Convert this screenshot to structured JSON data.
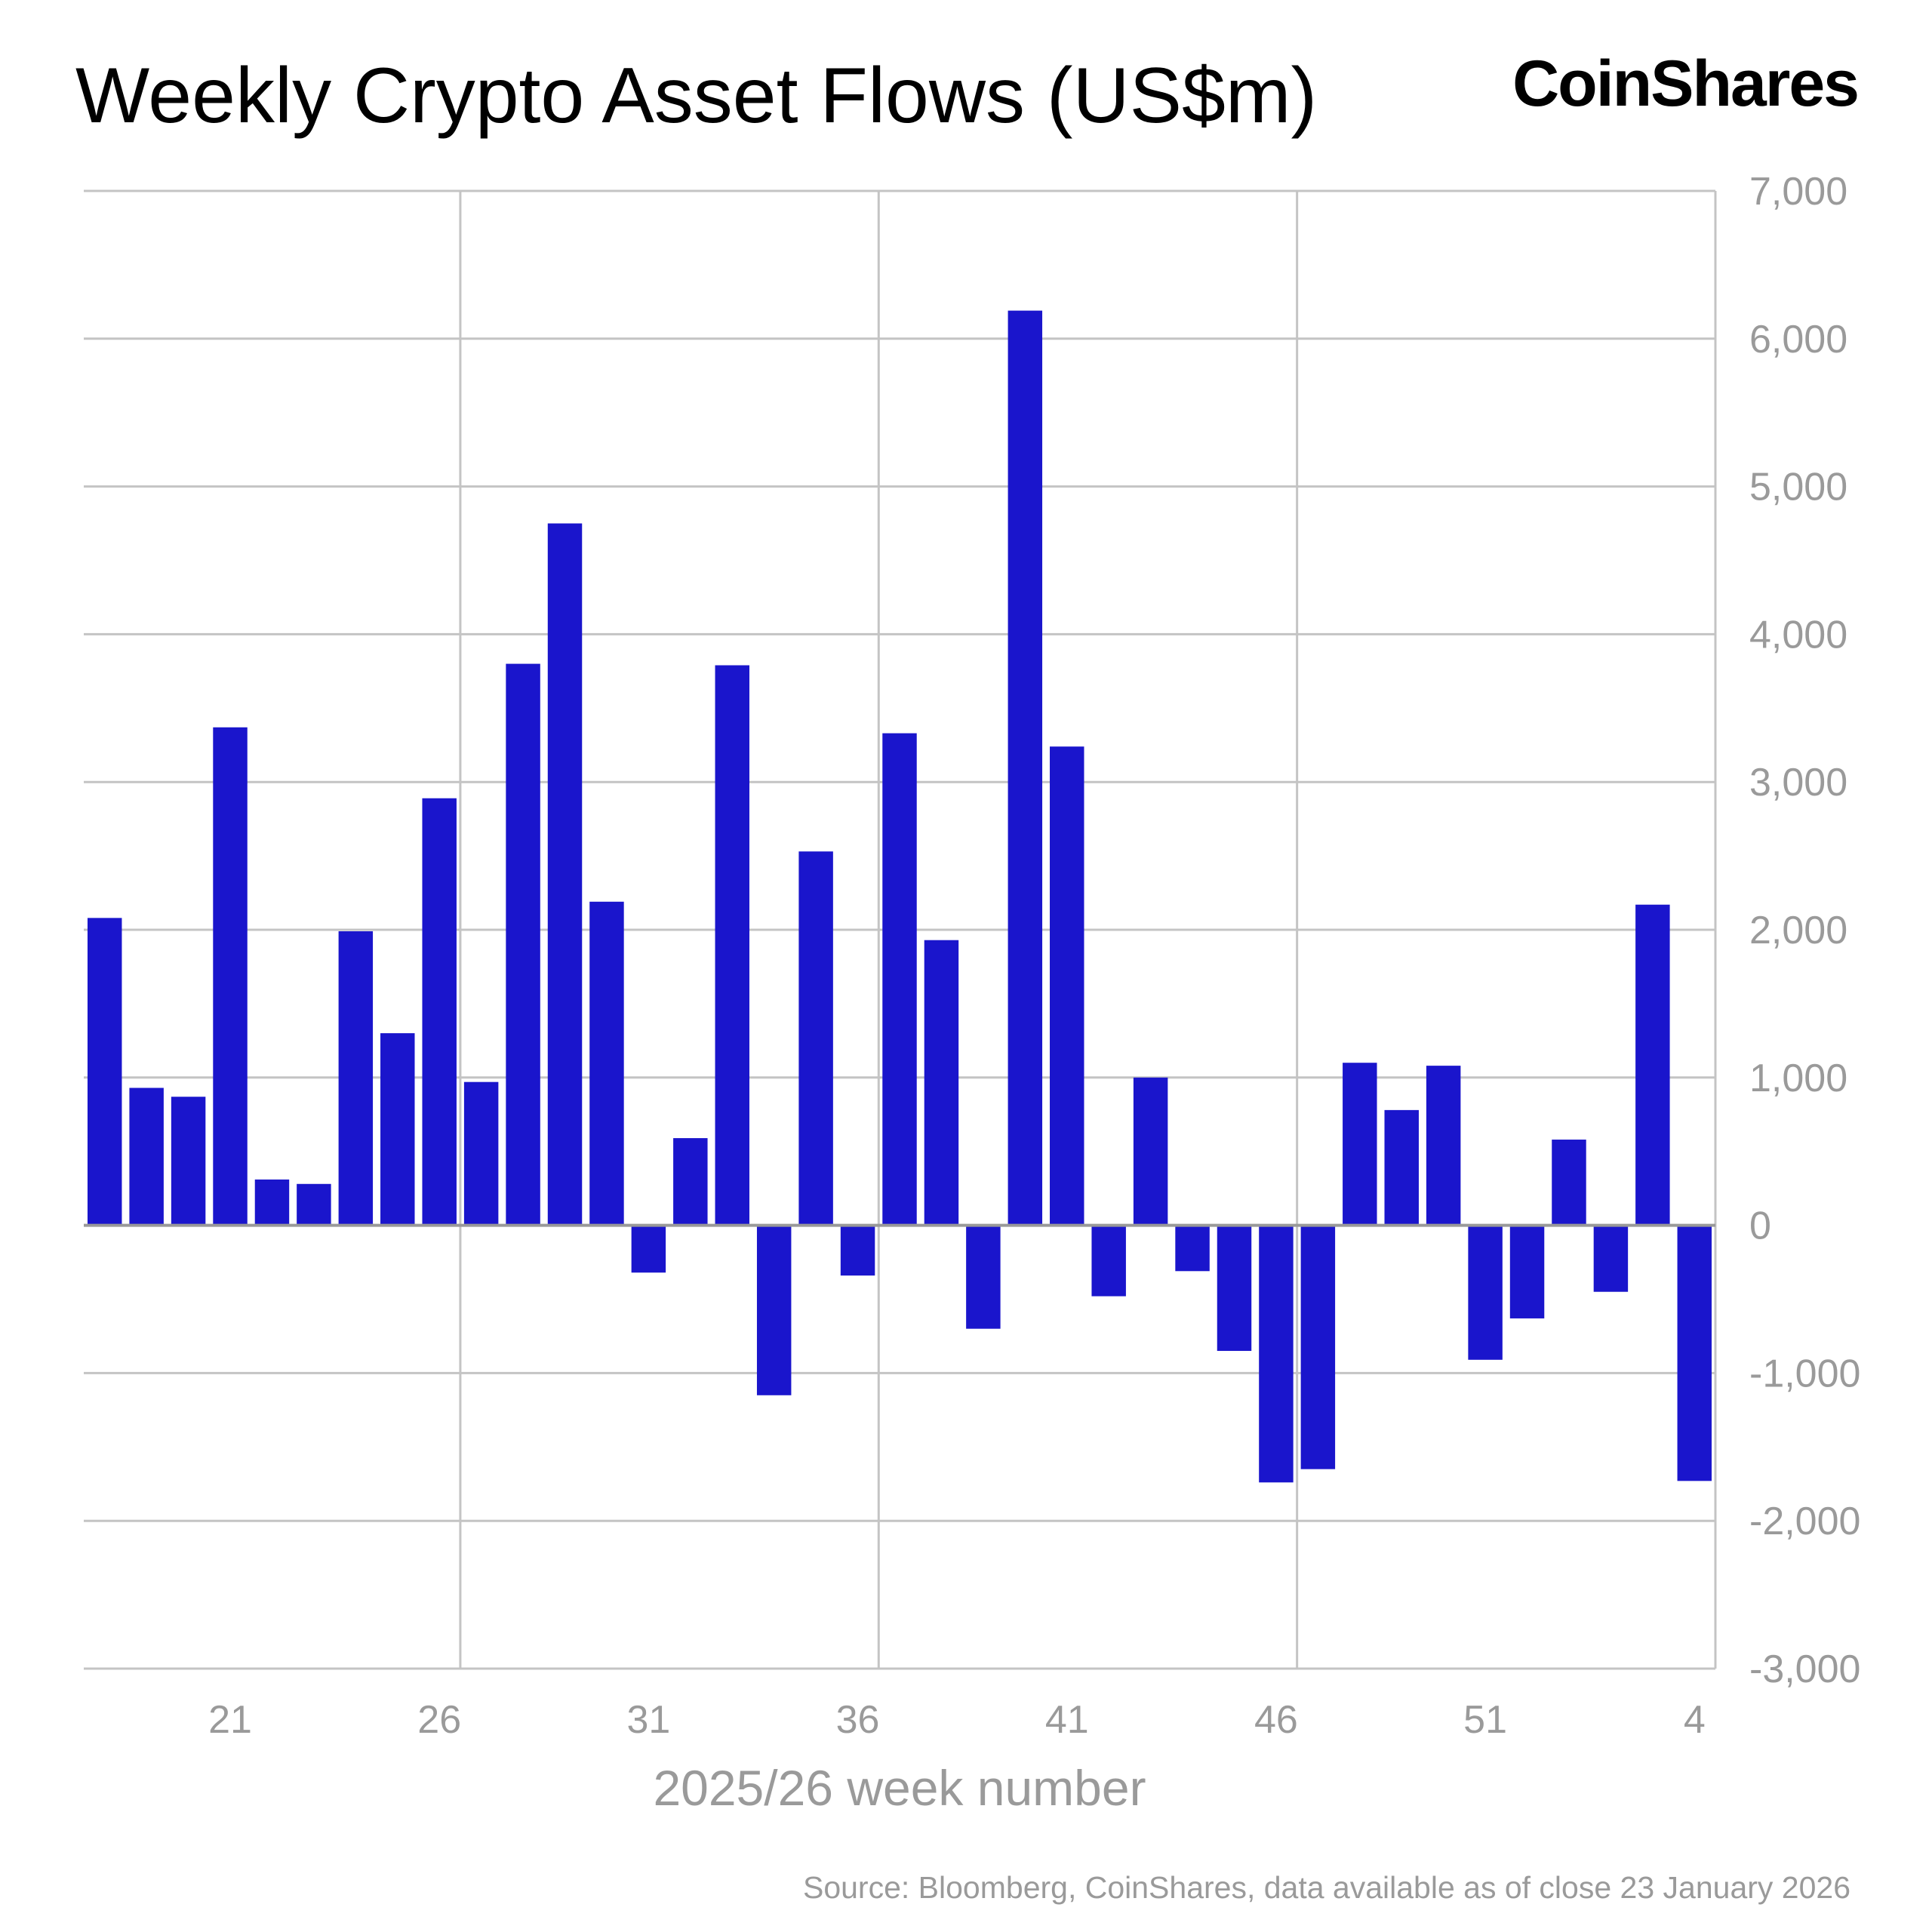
{
  "chart_data": {
    "type": "bar",
    "title": "Weekly Crypto Asset Flows (US$m)",
    "xlabel": "2025/26 week number",
    "ylabel": "",
    "ylim": [
      -3000,
      7000
    ],
    "yticks": [
      7000,
      6000,
      5000,
      4000,
      3000,
      2000,
      1000,
      0,
      -1000,
      -2000,
      -3000
    ],
    "ytick_labels": [
      "7,000",
      "6,000",
      "5,000",
      "4,000",
      "3,000",
      "2,000",
      "1,000",
      "0",
      "-1,000",
      "-2,000",
      "-3,000"
    ],
    "categories": [
      "18",
      "19",
      "20",
      "21",
      "22",
      "23",
      "24",
      "25",
      "26",
      "27",
      "28",
      "29",
      "30",
      "31",
      "32",
      "33",
      "34",
      "35",
      "36",
      "37",
      "38",
      "39",
      "40",
      "41",
      "42",
      "43",
      "44",
      "45",
      "46",
      "47",
      "48",
      "49",
      "50",
      "51",
      "52",
      "1",
      "2",
      "3",
      "4"
    ],
    "xtick_labels": [
      "21",
      "26",
      "31",
      "36",
      "41",
      "46",
      "51",
      "4"
    ],
    "values": [
      2080,
      930,
      870,
      3370,
      310,
      280,
      1990,
      1300,
      2890,
      970,
      3800,
      4750,
      2190,
      -320,
      590,
      3790,
      -1150,
      2530,
      -340,
      3330,
      1930,
      -700,
      6190,
      3240,
      -480,
      1000,
      -310,
      -850,
      -1740,
      -1650,
      1100,
      780,
      1080,
      -910,
      -630,
      580,
      -450,
      2170,
      -1730
    ],
    "grid": true,
    "legend": "none",
    "bar_color": "#1a15cc",
    "yaxis_side": "right"
  },
  "brand": {
    "logo": "CoinShares"
  },
  "source": "Source: Bloomberg, CoinShares, data available as of close 23 January 2026"
}
